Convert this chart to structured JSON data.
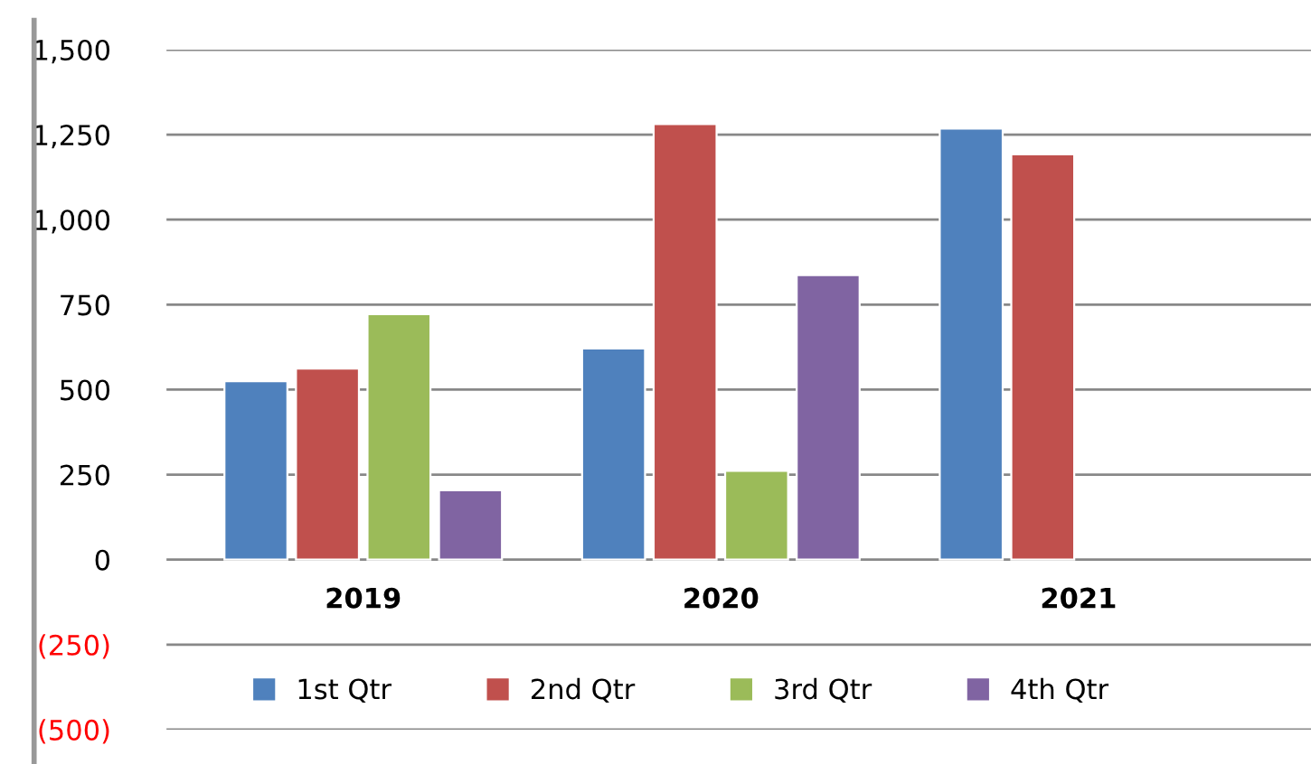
{
  "chart_data": {
    "type": "bar",
    "categories": [
      "2019",
      "2020",
      "2021"
    ],
    "series": [
      {
        "name": "1st Qtr",
        "color": "#4f81bd",
        "values": [
          525,
          621,
          1268
        ]
      },
      {
        "name": "2nd Qtr",
        "color": "#c0504d",
        "values": [
          562,
          1281,
          1192
        ]
      },
      {
        "name": "3rd Qtr",
        "color": "#9bbb59",
        "values": [
          722,
          261,
          null
        ]
      },
      {
        "name": "4th Qtr",
        "color": "#8064a2",
        "values": [
          204,
          837,
          null
        ]
      }
    ],
    "ylim": [
      -500,
      1500
    ],
    "yticks": [
      {
        "value": -500,
        "label": "(500)"
      },
      {
        "value": -250,
        "label": "(250)"
      },
      0,
      {
        "value": 250,
        "label": "250"
      },
      {
        "value": 500,
        "label": "500"
      },
      {
        "value": 750,
        "label": "750"
      },
      {
        "value": 1000,
        "label": "1,000"
      },
      {
        "value": 1250,
        "label": "1,250"
      },
      {
        "value": 1500,
        "label": "1,500"
      }
    ],
    "grid": "y",
    "legend": "bottom"
  }
}
